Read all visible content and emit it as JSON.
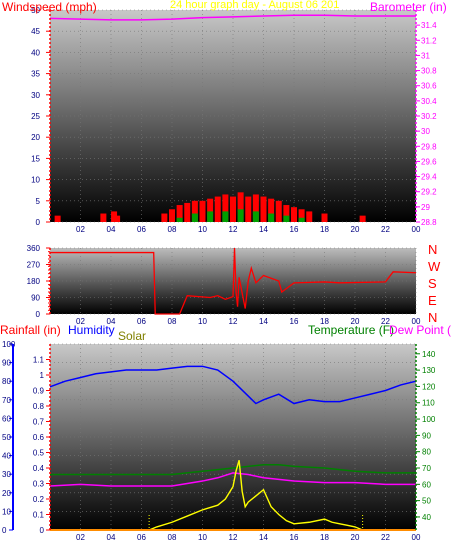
{
  "header": {
    "left_title": "Windspeed (mph)",
    "center_title": "24 hour graph day - August 06 201",
    "right_title": "Barometer (in)"
  },
  "panel2": {
    "direction_labels": [
      "N",
      "W",
      "S",
      "E",
      "N"
    ]
  },
  "panel3": {
    "rainfall_title": "Rainfall (in)",
    "humidity_title": "Humidity",
    "solar_title": "Solar",
    "temperature_title": "Temperature (F)",
    "dewpoint_title": "Dew Point ("
  },
  "colors": {
    "wind_gust": "#ff0000",
    "wind_avg": "#00a000",
    "barometer": "#ff00ff",
    "direction": "#ff0000",
    "humidity": "#0000ff",
    "solar": "#ffff00",
    "temperature": "#008000",
    "dewpoint": "#ff00ff",
    "rain": "#ff8c00",
    "left_axis": "#ff0000",
    "right_axis": "#ff00ff",
    "rain_axis": "#0000ff",
    "temp_axis": "#008000",
    "hum_axis": "#000080"
  },
  "chart_data": [
    {
      "type": "bar",
      "xlabel": "",
      "x_ticks": [
        "02",
        "04",
        "06",
        "08",
        "10",
        "12",
        "14",
        "16",
        "18",
        "20",
        "22",
        "00"
      ],
      "xlim": [
        0,
        24
      ],
      "ylim": [
        0,
        50
      ],
      "y_ticks": [
        0,
        5,
        10,
        15,
        20,
        25,
        30,
        35,
        40,
        45,
        50
      ],
      "y2lim": [
        28.8,
        31.6
      ],
      "y2_ticks": [
        "28.8",
        "29",
        "29.2",
        "29.4",
        "29.6",
        "29.8",
        "30",
        "30.2",
        "30.4",
        "30.6",
        "30.8",
        "31",
        "31.2",
        "31.4"
      ],
      "series": [
        {
          "axis": "left",
          "x": [
            0.5,
            3.5,
            4.2,
            4.4,
            7.5,
            8.0,
            8.5,
            9.0,
            9.5,
            10.0,
            10.5,
            11.0,
            11.5,
            12.0,
            12.5,
            13.0,
            13.5,
            14.0,
            14.5,
            15.0,
            15.5,
            16.0,
            16.5,
            17.0,
            18.0,
            20.5
          ],
          "values": [
            1.5,
            2,
            2.5,
            1.5,
            2,
            3,
            4,
            4.5,
            5,
            5,
            5.5,
            6,
            6.5,
            6,
            7,
            6,
            6.5,
            6,
            5.5,
            5,
            4,
            3.5,
            3,
            2.5,
            2,
            1.5
          ]
        },
        {
          "axis": "left",
          "x": [
            8.5,
            9.5,
            10.5,
            11.5,
            12.5,
            13.5,
            14.5,
            15.5,
            16.5
          ],
          "values": [
            1,
            2,
            2.5,
            2.5,
            3,
            2.5,
            2,
            1.5,
            1
          ]
        },
        {
          "axis": "right",
          "x": [
            0,
            2,
            4,
            6,
            8,
            10,
            12,
            14,
            16,
            18,
            20,
            22,
            24
          ],
          "values": [
            31.49,
            31.48,
            31.47,
            31.47,
            31.48,
            31.5,
            31.51,
            31.52,
            31.53,
            31.53,
            31.52,
            31.52,
            31.52
          ]
        }
      ]
    },
    {
      "type": "line",
      "xlabel": "",
      "x_ticks": [
        "02",
        "04",
        "06",
        "08",
        "10",
        "12",
        "14",
        "16",
        "18",
        "20",
        "22",
        "00"
      ],
      "xlim": [
        0,
        24
      ],
      "ylim": [
        0,
        360
      ],
      "y_ticks": [
        0,
        90,
        180,
        270,
        360
      ],
      "y_tick_labels": [
        "0",
        "90",
        "180",
        "270",
        "360"
      ],
      "y_ticks_minor": [
        0,
        20,
        40,
        60,
        80,
        100,
        120,
        140,
        160,
        180,
        200,
        220,
        240,
        260,
        280,
        300,
        320,
        340,
        360
      ],
      "series": [
        {
          "x": [
            0,
            6.8,
            6.9,
            8.5,
            9.0,
            10.5,
            11.0,
            11.5,
            12.0,
            12.1,
            12.2,
            12.3,
            12.4,
            12.8,
            13.0,
            13.2,
            13.5,
            14.0,
            15.0,
            15.2,
            16.0,
            18.0,
            19.0,
            22.0,
            22.5,
            24.0
          ],
          "values": [
            335,
            335,
            0,
            0,
            100,
            90,
            100,
            80,
            95,
            360,
            120,
            40,
            200,
            30,
            180,
            250,
            170,
            210,
            180,
            120,
            170,
            175,
            170,
            175,
            230,
            225
          ]
        }
      ]
    },
    {
      "type": "line",
      "xlabel": "",
      "x_ticks": [
        "02",
        "04",
        "06",
        "08",
        "10",
        "12",
        "14",
        "16",
        "18",
        "20",
        "22",
        "00"
      ],
      "xlim": [
        0,
        24
      ],
      "rain_ylim": [
        0,
        100
      ],
      "rain_ticks": [
        0,
        10,
        20,
        30,
        40,
        50,
        60,
        70,
        80,
        90,
        100
      ],
      "hum_ylim": [
        0,
        1.2
      ],
      "hum_ticks": [
        "0",
        "0.1",
        "0.2",
        "0.3",
        "0.4",
        "0.5",
        "0.6",
        "0.7",
        "0.8",
        "0.9",
        "1",
        "1.1"
      ],
      "temp_ylim": [
        32,
        146
      ],
      "temp_ticks": [
        40,
        50,
        60,
        70,
        80,
        90,
        100,
        110,
        120,
        130,
        140
      ],
      "series": [
        {
          "name": "Humidity",
          "axis": "rain",
          "x": [
            0,
            1,
            2,
            3,
            4,
            5,
            6,
            7,
            8,
            9,
            10,
            11,
            12,
            13,
            13.5,
            14,
            15,
            16,
            17,
            18,
            19,
            20,
            21,
            22,
            23,
            24
          ],
          "values": [
            77,
            80,
            82,
            84,
            85,
            86,
            86,
            86,
            87,
            88,
            88,
            86,
            80,
            72,
            68,
            70,
            73,
            68,
            70,
            69,
            69,
            71,
            73,
            75,
            78,
            80
          ]
        },
        {
          "name": "Temperature (F)",
          "axis": "temp",
          "x": [
            0,
            2,
            4,
            6,
            8,
            10,
            11,
            12,
            13,
            14,
            15,
            16,
            18,
            20,
            22,
            24
          ],
          "values": [
            66,
            66,
            66,
            66,
            66,
            68,
            69,
            70,
            71,
            72,
            72,
            71,
            70,
            68,
            67,
            67
          ]
        },
        {
          "name": "Dew Point",
          "axis": "temp",
          "x": [
            0,
            2,
            4,
            6,
            8,
            10,
            11,
            12,
            13,
            14,
            15,
            16,
            18,
            20,
            22,
            24
          ],
          "values": [
            59,
            60,
            59,
            59,
            59,
            62,
            64,
            67,
            66,
            64,
            63,
            62,
            61,
            61,
            60,
            60
          ]
        },
        {
          "name": "Solar",
          "axis": "hum",
          "x": [
            0,
            6.5,
            7.0,
            8.0,
            9.0,
            10.0,
            11.0,
            11.5,
            12.0,
            12.2,
            12.4,
            12.6,
            12.8,
            13.0,
            13.5,
            14.0,
            14.5,
            15.0,
            15.5,
            16.0,
            17.0,
            18.0,
            18.5,
            19.0,
            19.5,
            20.0,
            20.5,
            24.0
          ],
          "values": [
            0,
            0,
            0.02,
            0.05,
            0.09,
            0.13,
            0.16,
            0.2,
            0.28,
            0.38,
            0.45,
            0.25,
            0.15,
            0.18,
            0.22,
            0.26,
            0.15,
            0.1,
            0.06,
            0.04,
            0.05,
            0.07,
            0.05,
            0.04,
            0.03,
            0.02,
            0,
            0
          ]
        },
        {
          "name": "Rainfall (in)",
          "axis": "rain",
          "x": [
            0,
            24
          ],
          "values": [
            0,
            0
          ]
        }
      ]
    }
  ]
}
